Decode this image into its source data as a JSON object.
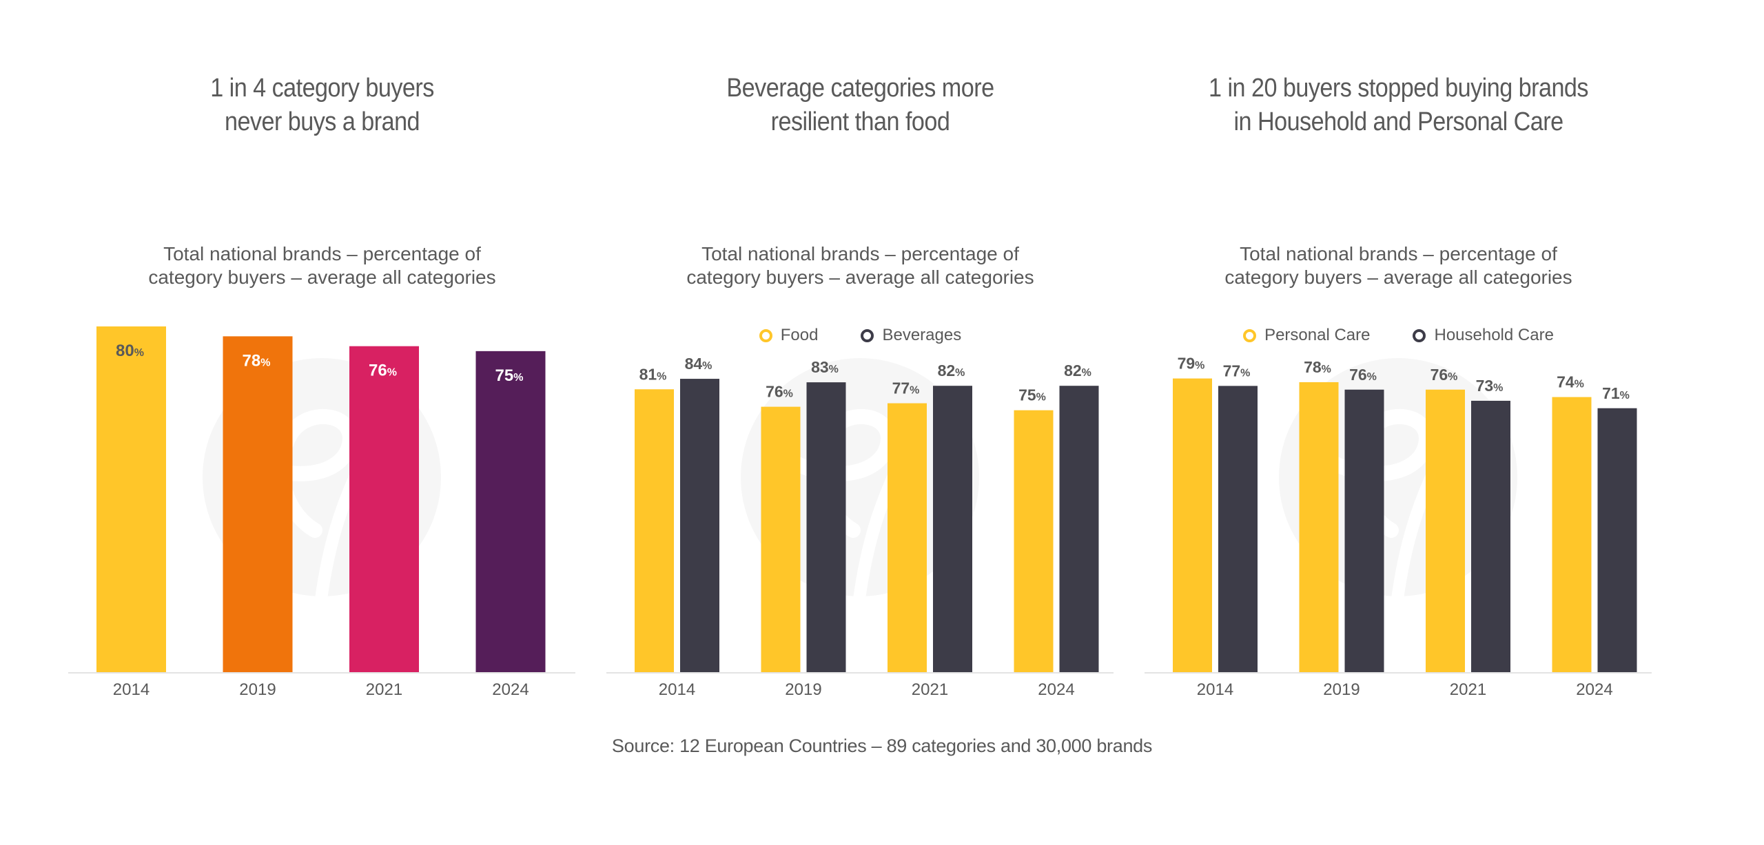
{
  "source": "Source: 12 European Countries – 89 categories and 30,000 brands",
  "panels": [
    {
      "title_lines": [
        "1 in 4 category buyers",
        "never buys a brand"
      ],
      "subtitle_lines": [
        "Total national brands – percentage of",
        "category buyers – average all categories"
      ]
    },
    {
      "title_lines": [
        "Beverage categories more",
        "resilient than food"
      ],
      "subtitle_lines": [
        "Total national brands – percentage of",
        "category buyers – average all categories"
      ],
      "legend": [
        {
          "label": "Food",
          "color": "#FFC629"
        },
        {
          "label": "Beverages",
          "color": "#3D3C48"
        }
      ]
    },
    {
      "title_lines": [
        "1 in 20 buyers stopped buying brands",
        "in Household and Personal Care"
      ],
      "subtitle_lines": [
        "Total national brands – percentage of",
        "category buyers – average all categories"
      ],
      "legend": [
        {
          "label": "Personal Care",
          "color": "#FFC629"
        },
        {
          "label": "Household Care",
          "color": "#3D3C48"
        }
      ]
    }
  ],
  "chart_data": [
    {
      "type": "bar",
      "title": "1 in 4 category buyers never buys a brand",
      "subtitle": "Total national brands – percentage of category buyers – average all categories",
      "categories": [
        "2014",
        "2019",
        "2021",
        "2024"
      ],
      "values": [
        80,
        78,
        76,
        75
      ],
      "bar_colors": [
        "#FFC629",
        "#F0740C",
        "#D82162",
        "#551E59"
      ],
      "label_colors": [
        "#595959",
        "#FFFFFF",
        "#FFFFFF",
        "#FFFFFF"
      ],
      "value_suffix": "%",
      "label_position": "inside-top",
      "xlabel": "",
      "ylabel": "",
      "ylim": [
        10,
        80
      ],
      "grid": false,
      "legend": null
    },
    {
      "type": "bar",
      "title": "Beverage categories more resilient than food",
      "subtitle": "Total national brands – percentage of category buyers – average all categories",
      "categories": [
        "2014",
        "2019",
        "2021",
        "2024"
      ],
      "series": [
        {
          "name": "Food",
          "color": "#FFC629",
          "values": [
            81,
            76,
            77,
            75
          ]
        },
        {
          "name": "Beverages",
          "color": "#3D3C48",
          "values": [
            84,
            83,
            82,
            82
          ]
        }
      ],
      "value_suffix": "%",
      "label_position": "outside-top",
      "xlabel": "",
      "ylabel": "",
      "ylim": [
        0,
        99
      ],
      "grid": false,
      "legend": "top-center"
    },
    {
      "type": "bar",
      "title": "1 in 20 buyers stopped buying brands in Household and Personal Care",
      "subtitle": "Total national brands – percentage of category buyers – average all categories",
      "categories": [
        "2014",
        "2019",
        "2021",
        "2024"
      ],
      "series": [
        {
          "name": "Personal Care",
          "color": "#FFC629",
          "values": [
            79,
            78,
            76,
            74
          ]
        },
        {
          "name": "Household Care",
          "color": "#3D3C48",
          "values": [
            77,
            76,
            73,
            71
          ]
        }
      ],
      "value_suffix": "%",
      "label_position": "outside-top",
      "xlabel": "",
      "ylabel": "",
      "ylim": [
        0,
        93
      ],
      "grid": false,
      "legend": "top-center"
    }
  ]
}
